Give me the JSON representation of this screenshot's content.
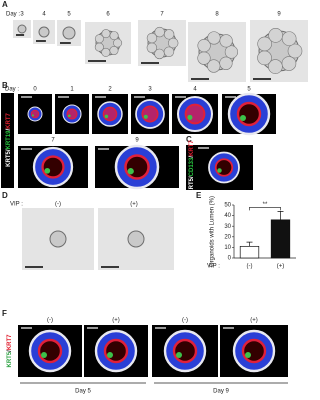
{
  "figure": {
    "A": {
      "label": "A",
      "day_label": "Day :",
      "days": [
        "3",
        "4",
        "5",
        "6",
        "7",
        "8",
        "9"
      ]
    },
    "B": {
      "label": "B",
      "days_row1": [
        "0",
        "1",
        "2",
        "3",
        "4",
        "5"
      ],
      "days_row2": [
        "7",
        "9"
      ],
      "stain": [
        "KRT5",
        "KRT19",
        "KRT7"
      ],
      "separator": "/"
    },
    "C": {
      "label": "C",
      "stain": [
        "KRT5",
        "CD133",
        "KRT7"
      ]
    },
    "D": {
      "label": "D",
      "vip_label": "VIP :",
      "conditions": [
        "(-)",
        "(+)"
      ]
    },
    "E": {
      "label": "E"
    },
    "F": {
      "label": "F",
      "conditions": [
        "(-)",
        "(+)",
        "(-)",
        "(+)"
      ],
      "stain": [
        "KRT5",
        "KRT7"
      ],
      "days": [
        "Day 5",
        "Day 9"
      ]
    }
  },
  "chart_data": {
    "type": "bar",
    "y_label": "Organoids with Lumen (%)",
    "x_label": "VIP :",
    "categories": [
      "(-)",
      "(+)"
    ],
    "values": [
      11,
      36
    ],
    "errors": [
      4,
      8
    ],
    "colors": [
      "#ffffff",
      "#111111"
    ],
    "annotation": "**",
    "ylim": [
      0,
      50
    ],
    "yticks": [
      0,
      10,
      20,
      30,
      40,
      50
    ]
  }
}
